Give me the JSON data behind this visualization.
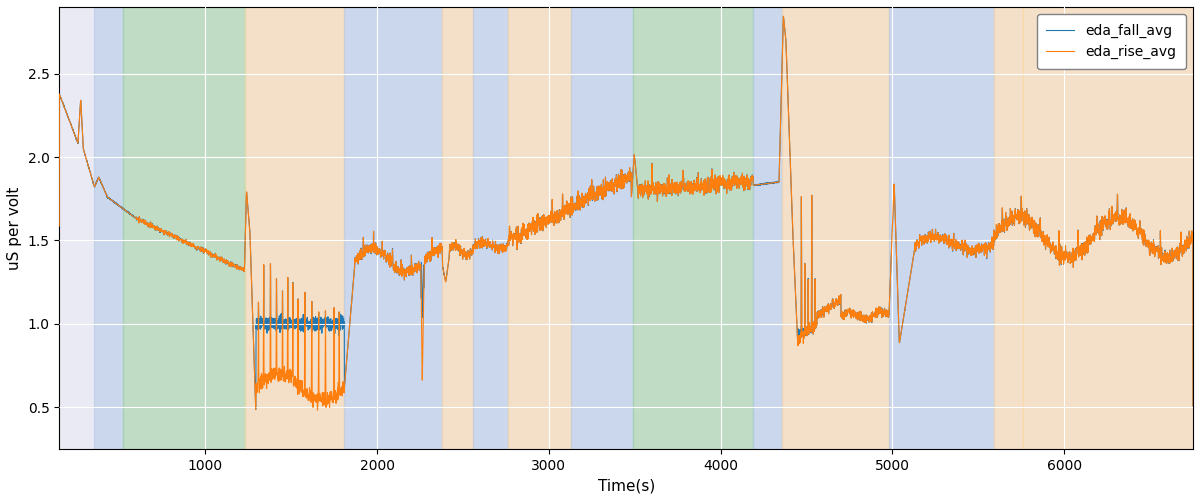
{
  "xlabel": "Time(s)",
  "ylabel": "uS per volt",
  "xlim": [
    150,
    6750
  ],
  "ylim": [
    0.25,
    2.9
  ],
  "yticks": [
    0.5,
    1.0,
    1.5,
    2.0,
    2.5
  ],
  "xticks": [
    1000,
    2000,
    3000,
    4000,
    5000,
    6000
  ],
  "line_fall_color": "#1f77b4",
  "line_rise_color": "#ff7f0e",
  "line_width": 0.8,
  "legend_labels": [
    "eda_fall_avg",
    "eda_rise_avg"
  ],
  "bg_bands": [
    {
      "xmin": 355,
      "xmax": 520,
      "color": "#aec6e8",
      "alpha": 0.5
    },
    {
      "xmin": 520,
      "xmax": 1230,
      "color": "#98d098",
      "alpha": 0.5
    },
    {
      "xmin": 1230,
      "xmax": 1810,
      "color": "#ffd8a0",
      "alpha": 0.5
    },
    {
      "xmin": 1810,
      "xmax": 2380,
      "color": "#aec6e8",
      "alpha": 0.5
    },
    {
      "xmin": 2380,
      "xmax": 2560,
      "color": "#ffd8a0",
      "alpha": 0.5
    },
    {
      "xmin": 2560,
      "xmax": 2760,
      "color": "#aec6e8",
      "alpha": 0.5
    },
    {
      "xmin": 2760,
      "xmax": 3130,
      "color": "#ffd8a0",
      "alpha": 0.5
    },
    {
      "xmin": 3130,
      "xmax": 3490,
      "color": "#aec6e8",
      "alpha": 0.5
    },
    {
      "xmin": 3490,
      "xmax": 4190,
      "color": "#98d098",
      "alpha": 0.5
    },
    {
      "xmin": 4190,
      "xmax": 4360,
      "color": "#aec6e8",
      "alpha": 0.5
    },
    {
      "xmin": 4360,
      "xmax": 4980,
      "color": "#ffd8a0",
      "alpha": 0.5
    },
    {
      "xmin": 4980,
      "xmax": 5590,
      "color": "#aec6e8",
      "alpha": 0.5
    },
    {
      "xmin": 5590,
      "xmax": 5760,
      "color": "#ffd8a0",
      "alpha": 0.5
    },
    {
      "xmin": 5760,
      "xmax": 6750,
      "color": "#ffd8a0",
      "alpha": 0.5
    }
  ],
  "grid_color": "#ffffff",
  "bg_color": "#eaeaf4"
}
